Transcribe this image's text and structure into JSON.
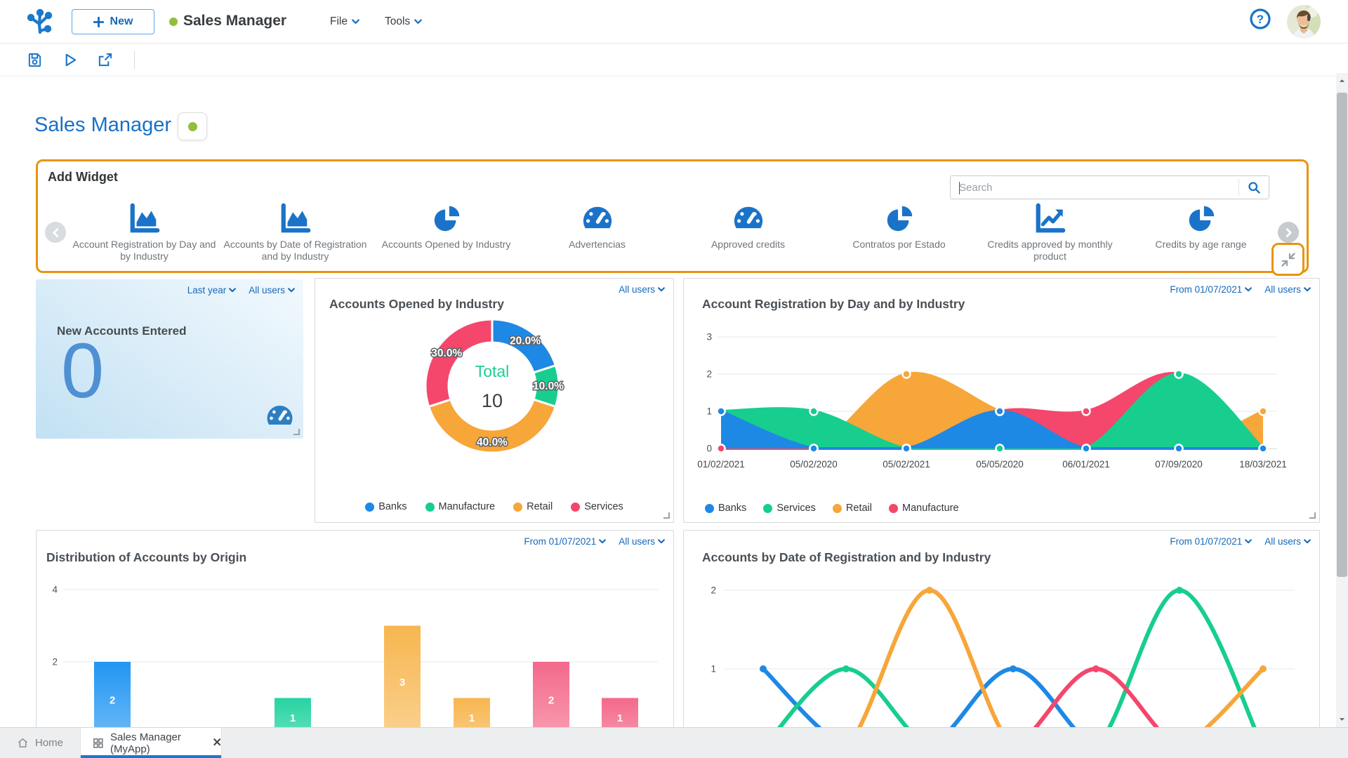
{
  "header": {
    "new_button": "New",
    "app_title": "Sales Manager",
    "menus": [
      {
        "label": "File"
      },
      {
        "label": "Tools"
      }
    ],
    "icons": [
      "help-icon",
      "user-avatar"
    ]
  },
  "toolbar": {
    "icons": [
      "save-icon",
      "run-icon",
      "export-icon"
    ]
  },
  "page": {
    "title": "Sales Manager"
  },
  "add_widget": {
    "title": "Add Widget",
    "search_placeholder": "Search",
    "highlight_color": "#e8940f",
    "items": [
      {
        "label": "Account Registration by Day and by Industry",
        "icon": "area-chart-icon"
      },
      {
        "label": "Accounts by Date of Registration and by Industry",
        "icon": "area-chart-icon"
      },
      {
        "label": "Accounts Opened by Industry",
        "icon": "pie-chart-icon"
      },
      {
        "label": "Advertencias",
        "icon": "gauge-icon"
      },
      {
        "label": "Approved credits",
        "icon": "gauge-icon"
      },
      {
        "label": "Contratos por Estado",
        "icon": "pie-chart-icon"
      },
      {
        "label": "Credits approved by monthly product",
        "icon": "line-chart-icon"
      },
      {
        "label": "Credits by age range",
        "icon": "pie-chart-icon"
      }
    ]
  },
  "widgets": {
    "new_accounts": {
      "filters": [
        "Last year",
        "All users"
      ],
      "title": "New Accounts Entered",
      "value": "0",
      "icon": "gauge-icon"
    },
    "donut": {
      "filters": [
        "All users"
      ]
    },
    "area": {
      "filters": [
        "From 01/07/2021",
        "All users"
      ]
    },
    "bars": {
      "filters": [
        "From 01/07/2021",
        "All users"
      ]
    },
    "lines": {
      "filters": [
        "From 01/07/2021",
        "All users"
      ]
    }
  },
  "tabbar": {
    "tabs": [
      {
        "label": "Home",
        "icon": "home-icon",
        "active": false
      },
      {
        "label": "Sales Manager (MyApp)",
        "icon": "grid-icon",
        "active": true,
        "closable": true
      }
    ]
  },
  "colors": {
    "accent_blue": "#1a73c8",
    "link_blue": "#1669bb",
    "highlight_orange": "#e8940f",
    "status_green": "#93bd3d",
    "chart_blue": "#1e88e5",
    "chart_green": "#17ce8e",
    "chart_orange": "#f7a63a",
    "chart_red": "#f4476b"
  },
  "chart_data": [
    {
      "id": "accounts_opened_by_industry",
      "type": "pie",
      "title": "Accounts Opened by Industry",
      "labels": [
        "Banks",
        "Manufacture",
        "Retail",
        "Services"
      ],
      "values_pct": [
        20.0,
        10.0,
        40.0,
        30.0
      ],
      "slice_labels": [
        "20.0%",
        "10.0%",
        "40.0%",
        "30.0%"
      ],
      "center": {
        "label": "Total",
        "value": "10"
      },
      "colors": [
        "#1e88e5",
        "#17ce8e",
        "#f7a63a",
        "#f4476b"
      ],
      "legend_position": "bottom"
    },
    {
      "id": "account_registration_by_day_and_industry",
      "type": "area",
      "title": "Account Registration by Day and by Industry",
      "x": [
        "01/02/2021",
        "05/02/2020",
        "05/02/2021",
        "05/05/2020",
        "06/01/2021",
        "07/09/2020",
        "18/03/2021"
      ],
      "series": [
        {
          "name": "Banks",
          "color": "#1e88e5",
          "values": [
            1,
            0,
            0,
            1,
            0,
            0,
            0
          ]
        },
        {
          "name": "Services",
          "color": "#17ce8e",
          "values": [
            1,
            1,
            0,
            0,
            0,
            2,
            0
          ]
        },
        {
          "name": "Retail",
          "color": "#f7a63a",
          "values": [
            0,
            0,
            2,
            1,
            0,
            0,
            1
          ]
        },
        {
          "name": "Manufacture",
          "color": "#f4476b",
          "values": [
            0,
            0,
            0,
            1,
            1,
            2,
            0
          ]
        }
      ],
      "ylim": [
        0,
        3
      ],
      "yticks": [
        0,
        1,
        2,
        3
      ],
      "grid": true,
      "legend_position": "bottom"
    },
    {
      "id": "distribution_of_accounts_by_origin",
      "type": "bar",
      "title": "Distribution of Accounts by Origin",
      "values": [
        2,
        1,
        3,
        1,
        2,
        1
      ],
      "bar_colors": [
        "#2196f3",
        "#27d3a2",
        "#f7b64f",
        "#f7b64f",
        "#f4698a",
        "#f4698a"
      ],
      "ylim": [
        0,
        4
      ],
      "yticks_visible": [
        4,
        2
      ],
      "grid": true,
      "x_labels_visible": false
    },
    {
      "id": "accounts_by_date_of_registration_and_industry",
      "type": "line",
      "title": "Accounts by Date of Registration and by Industry",
      "series": [
        {
          "name": "Banks",
          "color": "#1e88e5",
          "values": [
            1,
            0,
            0,
            1,
            0,
            0,
            0
          ]
        },
        {
          "name": "Services",
          "color": "#17ce8e",
          "values": [
            0,
            1,
            0,
            0,
            0,
            2,
            0
          ]
        },
        {
          "name": "Retail",
          "color": "#f7a63a",
          "values": [
            0,
            0,
            2,
            0,
            0,
            0,
            1
          ]
        },
        {
          "name": "Manufacture",
          "color": "#f4476b",
          "values": [
            0,
            0,
            0,
            0,
            1,
            0,
            0
          ]
        }
      ],
      "ylim": [
        0,
        2
      ],
      "yticks_visible": [
        2,
        1
      ],
      "grid": true,
      "x_labels_visible": false
    }
  ]
}
